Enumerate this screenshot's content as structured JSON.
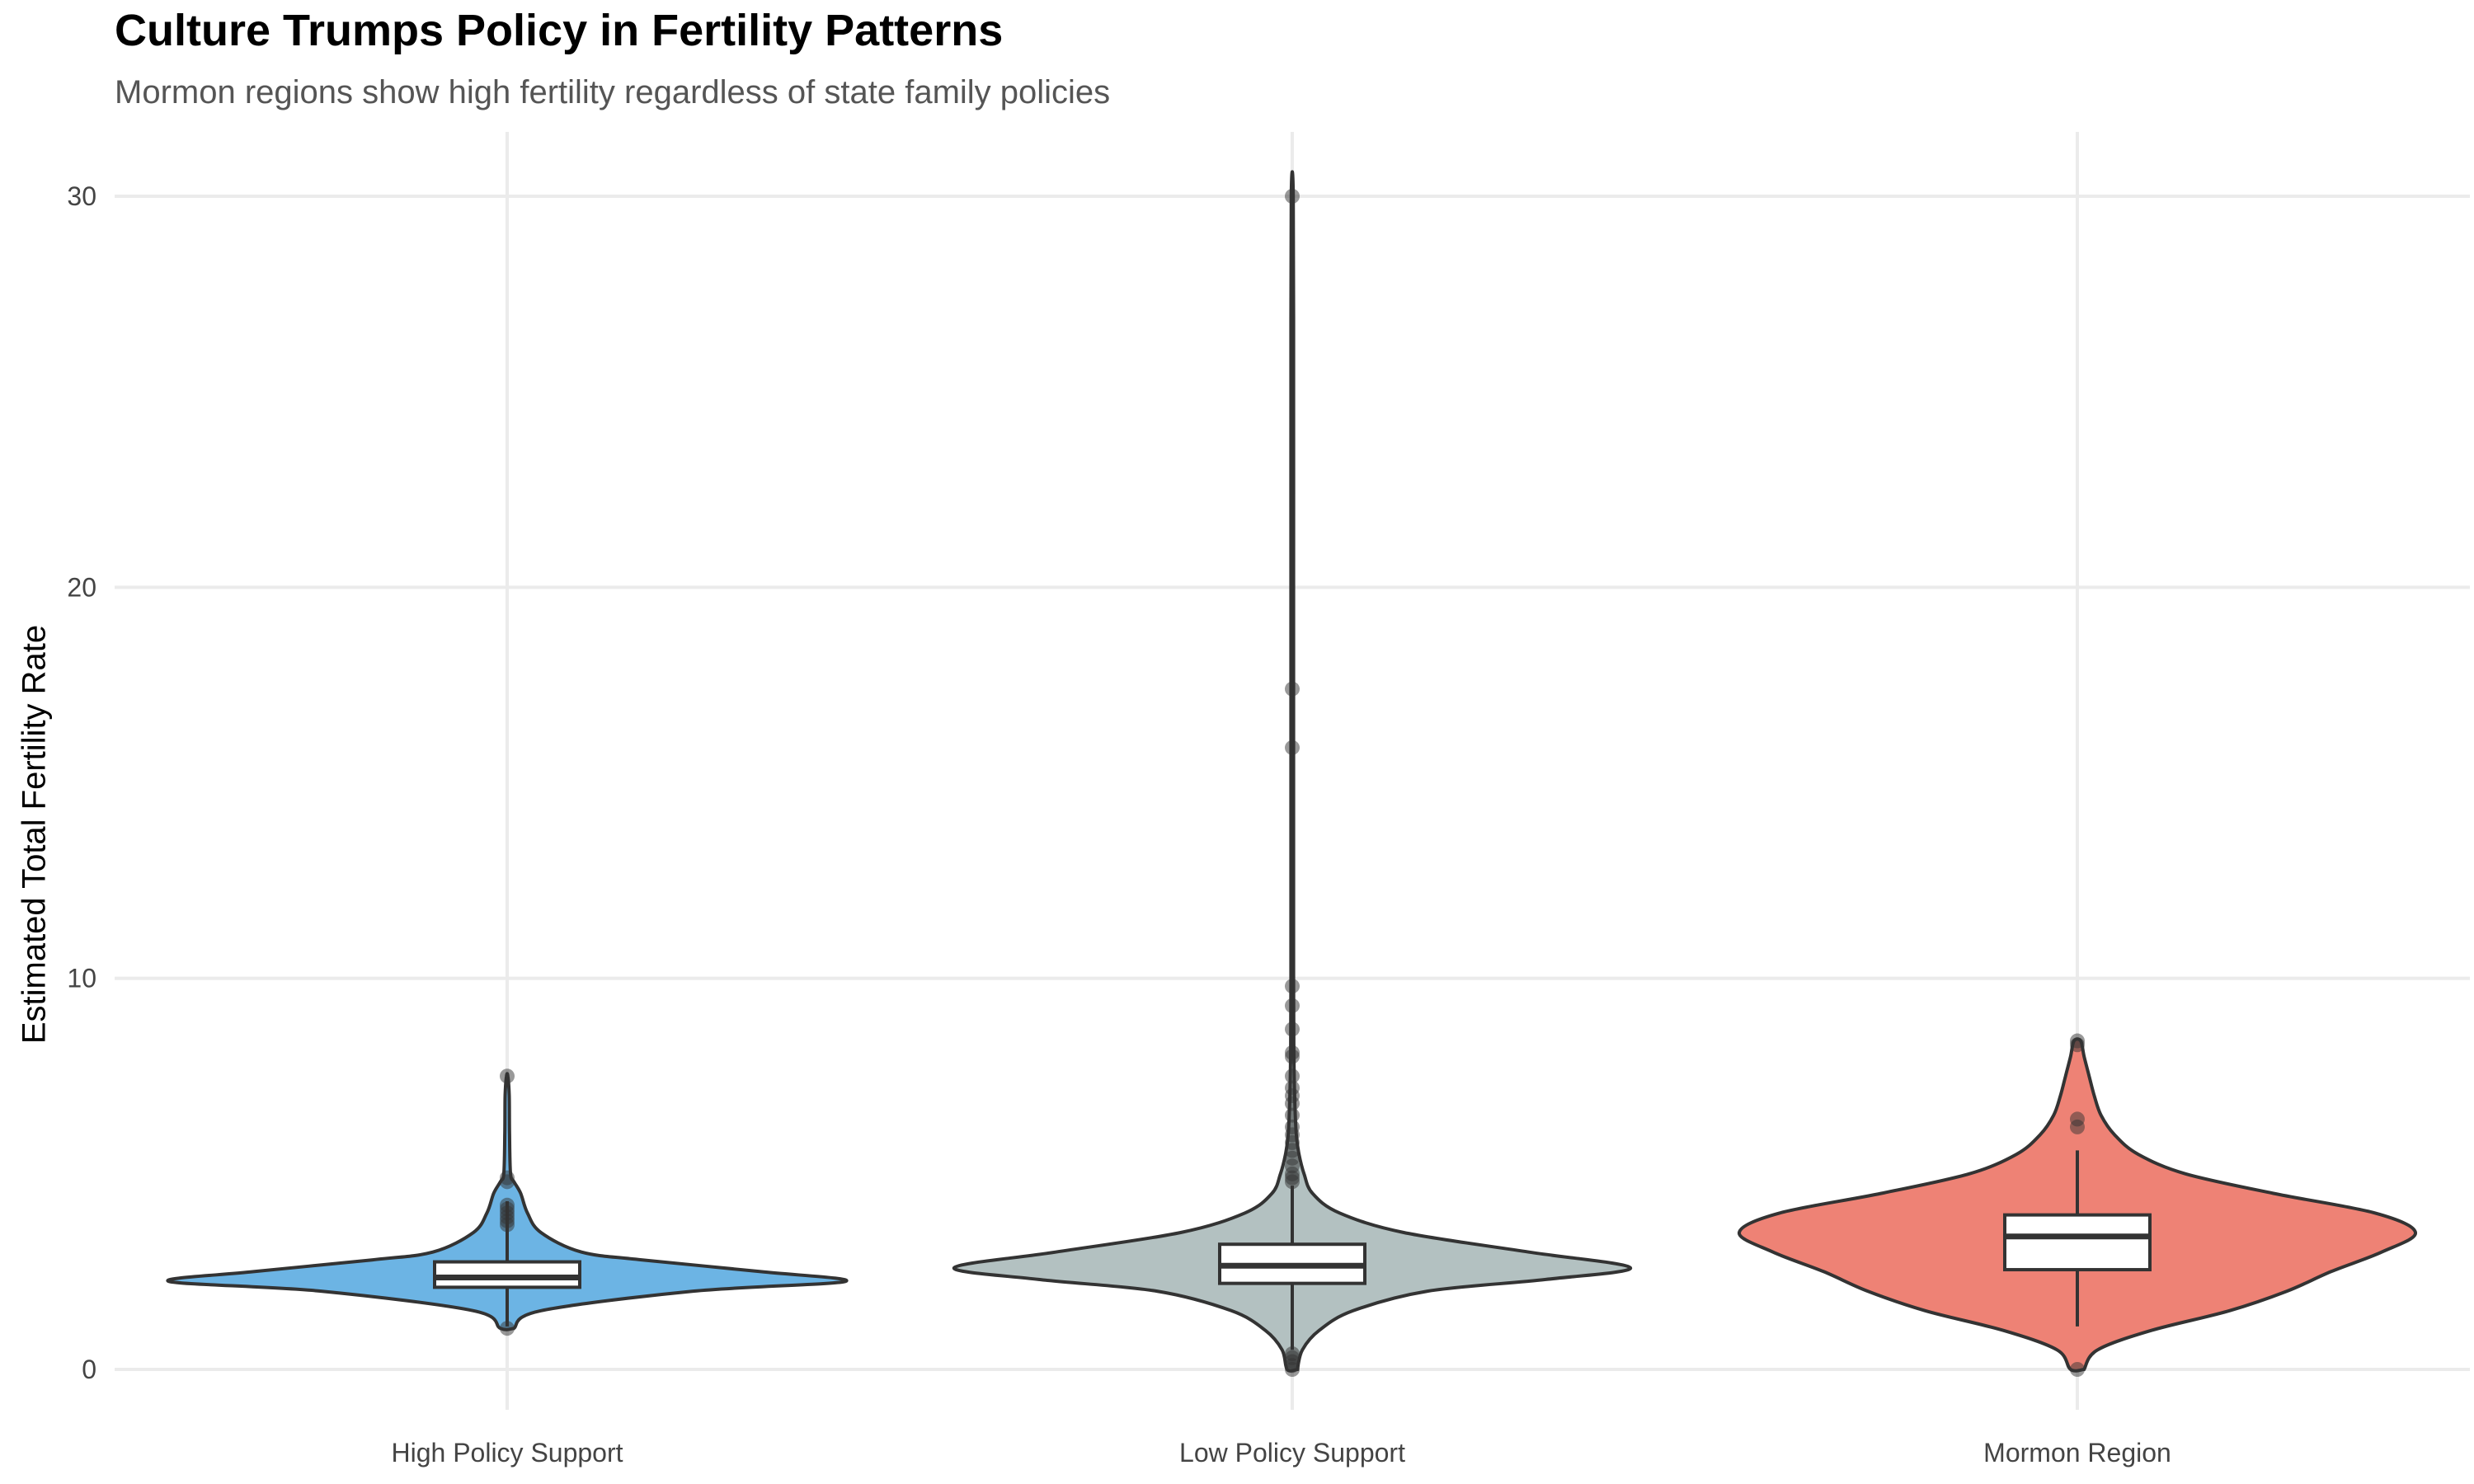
{
  "chart_data": {
    "type": "violin",
    "title": "Culture Trumps Policy in Fertility Patterns",
    "subtitle": "Mormon regions show high fertility regardless of state family policies",
    "xlabel": "",
    "ylabel": "Estimated Total Fertility Rate",
    "ylim": [
      -1.5,
      31.5
    ],
    "yticks": [
      0,
      10,
      20,
      30
    ],
    "grid": true,
    "legend": "none",
    "categories": [
      "High Policy Support",
      "Low Policy Support",
      "Mormon Region"
    ],
    "series": [
      {
        "category": "High Policy Support",
        "color": "#6CB4E4",
        "box": {
          "min": 1.1,
          "q1": 2.1,
          "median": 2.35,
          "q3": 2.75,
          "max": 4.3
        },
        "outliers": [
          1.05,
          3.7,
          3.8,
          3.9,
          4.0,
          4.1,
          4.2,
          4.8,
          4.9,
          7.5
        ],
        "density": [
          [
            1.05,
            0.02
          ],
          [
            1.5,
            0.1
          ],
          [
            2.0,
            0.55
          ],
          [
            2.25,
            1.0
          ],
          [
            2.5,
            0.75
          ],
          [
            2.8,
            0.4
          ],
          [
            3.0,
            0.22
          ],
          [
            3.5,
            0.1
          ],
          [
            4.0,
            0.06
          ],
          [
            4.5,
            0.04
          ],
          [
            4.8,
            0.02
          ],
          [
            5.0,
            0.01
          ],
          [
            6.0,
            0.007
          ],
          [
            7.0,
            0.006
          ],
          [
            7.5,
            0.002
          ]
        ]
      },
      {
        "category": "Low Policy Support",
        "color": "#B3C1C1",
        "box": {
          "min": 0.5,
          "q1": 2.2,
          "median": 2.65,
          "q3": 3.2,
          "max": 4.7
        },
        "outliers": [
          0.0,
          0.1,
          0.2,
          0.3,
          0.4,
          4.8,
          4.9,
          5.0,
          5.2,
          5.4,
          5.6,
          5.8,
          6.0,
          6.2,
          6.5,
          6.8,
          7.0,
          7.2,
          7.5,
          8.0,
          8.1,
          8.7,
          9.3,
          9.8,
          15.9,
          17.4,
          30.0
        ],
        "density": [
          [
            0.0,
            0.015
          ],
          [
            0.5,
            0.03
          ],
          [
            1.0,
            0.08
          ],
          [
            1.5,
            0.18
          ],
          [
            2.0,
            0.4
          ],
          [
            2.3,
            0.75
          ],
          [
            2.6,
            1.0
          ],
          [
            3.0,
            0.7
          ],
          [
            3.5,
            0.33
          ],
          [
            4.0,
            0.14
          ],
          [
            4.5,
            0.06
          ],
          [
            5.0,
            0.035
          ],
          [
            5.5,
            0.02
          ],
          [
            6.0,
            0.012
          ],
          [
            7.0,
            0.007
          ],
          [
            8.0,
            0.005
          ],
          [
            10.0,
            0.004
          ],
          [
            15.0,
            0.004
          ],
          [
            20.0,
            0.004
          ],
          [
            25.0,
            0.004
          ],
          [
            30.0,
            0.003
          ]
        ]
      },
      {
        "category": "Mormon Region",
        "color": "#EE8275",
        "box": {
          "min": 1.1,
          "q1": 2.55,
          "median": 3.4,
          "q3": 3.95,
          "max": 5.6
        },
        "outliers": [
          0.0,
          6.2,
          6.4,
          8.3,
          8.4
        ],
        "density": [
          [
            0.0,
            0.02
          ],
          [
            0.5,
            0.06
          ],
          [
            1.0,
            0.22
          ],
          [
            1.5,
            0.45
          ],
          [
            2.0,
            0.62
          ],
          [
            2.5,
            0.75
          ],
          [
            3.0,
            0.9
          ],
          [
            3.5,
            1.0
          ],
          [
            4.0,
            0.88
          ],
          [
            4.5,
            0.58
          ],
          [
            5.0,
            0.32
          ],
          [
            5.5,
            0.18
          ],
          [
            6.0,
            0.11
          ],
          [
            6.5,
            0.07
          ],
          [
            7.0,
            0.05
          ],
          [
            7.5,
            0.035
          ],
          [
            8.0,
            0.02
          ],
          [
            8.4,
            0.01
          ]
        ]
      }
    ]
  }
}
